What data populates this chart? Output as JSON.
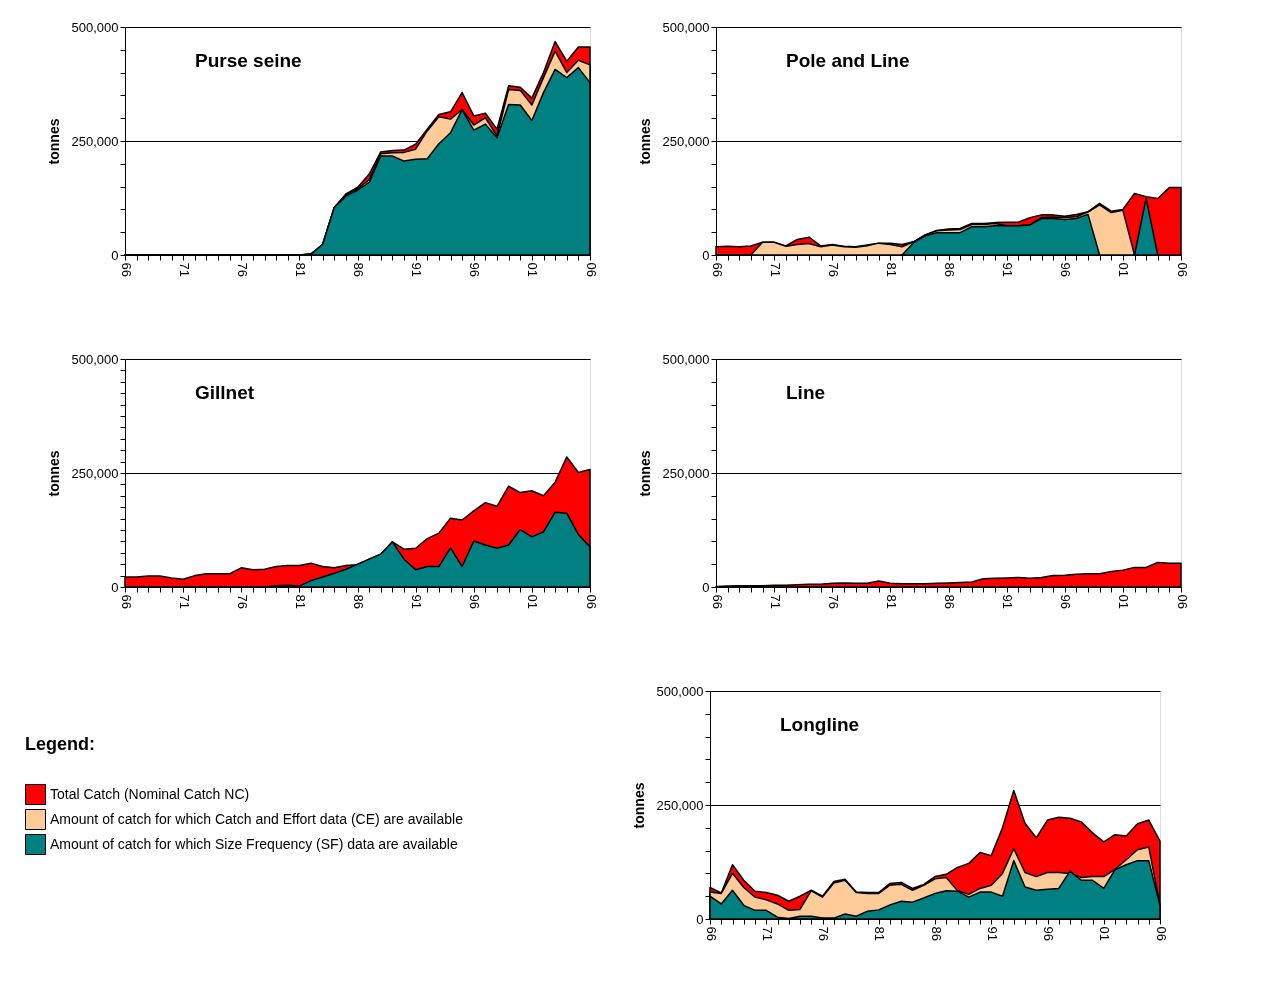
{
  "chart_data": [
    {
      "type": "area",
      "title": "Purse seine",
      "ylabel": "tonnes",
      "grid": "y",
      "legend": "bottom left",
      "legend_title": "Legend:",
      "x": [
        1966,
        1967,
        1968,
        1969,
        1970,
        1971,
        1972,
        1973,
        1974,
        1975,
        1976,
        1977,
        1978,
        1979,
        1980,
        1981,
        1982,
        1983,
        1984,
        1985,
        1986,
        1987,
        1988,
        1989,
        1990,
        1991,
        1992,
        1993,
        1994,
        1995,
        1996,
        1997,
        1998,
        1999,
        2000,
        2001,
        2002,
        2003,
        2004,
        2005,
        2006
      ],
      "xlim": [
        1966,
        2006
      ],
      "xticks": [
        {
          "value": 1966,
          "label": "66"
        },
        {
          "value": 1967,
          "label": null
        },
        {
          "value": 1968,
          "label": null
        },
        {
          "value": 1969,
          "label": null
        },
        {
          "value": 1970,
          "label": null
        },
        {
          "value": 1971,
          "label": "71"
        },
        {
          "value": 1972,
          "label": null
        },
        {
          "value": 1973,
          "label": null
        },
        {
          "value": 1974,
          "label": null
        },
        {
          "value": 1975,
          "label": null
        },
        {
          "value": 1976,
          "label": "76"
        },
        {
          "value": 1977,
          "label": null
        },
        {
          "value": 1978,
          "label": null
        },
        {
          "value": 1979,
          "label": null
        },
        {
          "value": 1980,
          "label": null
        },
        {
          "value": 1981,
          "label": "81"
        },
        {
          "value": 1982,
          "label": null
        },
        {
          "value": 1983,
          "label": null
        },
        {
          "value": 1984,
          "label": null
        },
        {
          "value": 1985,
          "label": null
        },
        {
          "value": 1986,
          "label": "86"
        },
        {
          "value": 1987,
          "label": null
        },
        {
          "value": 1988,
          "label": null
        },
        {
          "value": 1989,
          "label": null
        },
        {
          "value": 1990,
          "label": null
        },
        {
          "value": 1991,
          "label": "91"
        },
        {
          "value": 1992,
          "label": null
        },
        {
          "value": 1993,
          "label": null
        },
        {
          "value": 1994,
          "label": null
        },
        {
          "value": 1995,
          "label": null
        },
        {
          "value": 1996,
          "label": "96"
        },
        {
          "value": 1997,
          "label": null
        },
        {
          "value": 1998,
          "label": null
        },
        {
          "value": 1999,
          "label": null
        },
        {
          "value": 2000,
          "label": null
        },
        {
          "value": 2001,
          "label": "01"
        },
        {
          "value": 2002,
          "label": null
        },
        {
          "value": 2003,
          "label": null
        },
        {
          "value": 2004,
          "label": null
        },
        {
          "value": 2005,
          "label": null
        },
        {
          "value": 2006,
          "label": "06"
        }
      ],
      "ylim": [
        0,
        500000
      ],
      "yticks": [
        0,
        {
          "value": 50000,
          "label": null
        },
        {
          "value": 100000,
          "label": null
        },
        {
          "value": 150000,
          "label": null
        },
        {
          "value": 200000,
          "label": null
        },
        {
          "value": 250000,
          "label": "250,000"
        },
        {
          "value": 300000,
          "label": null
        },
        {
          "value": 350000,
          "label": null
        },
        {
          "value": 400000,
          "label": null
        },
        {
          "value": 450000,
          "label": null
        },
        {
          "value": 500000,
          "label": "500,000"
        }
      ],
      "series": [
        {
          "name": "Total Catch (Nominal Catch NC)",
          "color": "#ff0000",
          "values": [
            0,
            0,
            0,
            0,
            0,
            0,
            0,
            0,
            0,
            0,
            0,
            0,
            0,
            0,
            0,
            0,
            2000,
            23000,
            104000,
            134000,
            148000,
            177000,
            226000,
            229000,
            230000,
            243000,
            276000,
            308000,
            314000,
            356000,
            305000,
            311000,
            276000,
            371000,
            368000,
            344000,
            400000,
            468000,
            425000,
            456000,
            456000
          ]
        },
        {
          "name": "Amount of catch for which Catch and Effort data (CE) are available",
          "color": "#ffcc99",
          "values": [
            0,
            0,
            0,
            0,
            0,
            0,
            0,
            0,
            0,
            0,
            0,
            0,
            0,
            0,
            0,
            0,
            2000,
            23000,
            104000,
            131000,
            145000,
            165000,
            222000,
            224000,
            225000,
            232000,
            272000,
            303000,
            298000,
            319000,
            285000,
            301000,
            261000,
            363000,
            361000,
            329000,
            389000,
            447000,
            400000,
            427000,
            417000
          ]
        },
        {
          "name": "Amount of catch for which Size Frequency (SF) data are available",
          "color": "#008080",
          "values": [
            0,
            0,
            0,
            0,
            0,
            0,
            0,
            0,
            0,
            0,
            0,
            0,
            0,
            0,
            0,
            0,
            2000,
            23000,
            104000,
            129000,
            142000,
            159000,
            217000,
            217000,
            206000,
            210000,
            211000,
            244000,
            268000,
            319000,
            274000,
            287000,
            257000,
            330000,
            329000,
            295000,
            356000,
            407000,
            389000,
            411000,
            378000
          ]
        }
      ]
    },
    {
      "type": "area",
      "title": "Pole and Line",
      "ylabel": "tonnes",
      "grid": "y",
      "x": [
        1966,
        1967,
        1968,
        1969,
        1970,
        1971,
        1972,
        1973,
        1974,
        1975,
        1976,
        1977,
        1978,
        1979,
        1980,
        1981,
        1982,
        1983,
        1984,
        1985,
        1986,
        1987,
        1988,
        1989,
        1990,
        1991,
        1992,
        1993,
        1994,
        1995,
        1996,
        1997,
        1998,
        1999,
        2000,
        2001,
        2002,
        2003,
        2004,
        2005,
        2006
      ],
      "xlim": [
        1966,
        2006
      ],
      "xticks": [
        {
          "value": 1966,
          "label": "66"
        },
        {
          "value": 1967,
          "label": null
        },
        {
          "value": 1968,
          "label": null
        },
        {
          "value": 1969,
          "label": null
        },
        {
          "value": 1970,
          "label": null
        },
        {
          "value": 1971,
          "label": "71"
        },
        {
          "value": 1972,
          "label": null
        },
        {
          "value": 1973,
          "label": null
        },
        {
          "value": 1974,
          "label": null
        },
        {
          "value": 1975,
          "label": null
        },
        {
          "value": 1976,
          "label": "76"
        },
        {
          "value": 1977,
          "label": null
        },
        {
          "value": 1978,
          "label": null
        },
        {
          "value": 1979,
          "label": null
        },
        {
          "value": 1980,
          "label": null
        },
        {
          "value": 1981,
          "label": "81"
        },
        {
          "value": 1982,
          "label": null
        },
        {
          "value": 1983,
          "label": null
        },
        {
          "value": 1984,
          "label": null
        },
        {
          "value": 1985,
          "label": null
        },
        {
          "value": 1986,
          "label": "86"
        },
        {
          "value": 1987,
          "label": null
        },
        {
          "value": 1988,
          "label": null
        },
        {
          "value": 1989,
          "label": null
        },
        {
          "value": 1990,
          "label": null
        },
        {
          "value": 1991,
          "label": "91"
        },
        {
          "value": 1992,
          "label": null
        },
        {
          "value": 1993,
          "label": null
        },
        {
          "value": 1994,
          "label": null
        },
        {
          "value": 1995,
          "label": null
        },
        {
          "value": 1996,
          "label": "96"
        },
        {
          "value": 1997,
          "label": null
        },
        {
          "value": 1998,
          "label": null
        },
        {
          "value": 1999,
          "label": null
        },
        {
          "value": 2000,
          "label": null
        },
        {
          "value": 2001,
          "label": "01"
        },
        {
          "value": 2002,
          "label": null
        },
        {
          "value": 2003,
          "label": null
        },
        {
          "value": 2004,
          "label": null
        },
        {
          "value": 2005,
          "label": null
        },
        {
          "value": 2006,
          "label": "06"
        }
      ],
      "ylim": [
        0,
        500000
      ],
      "yticks": [
        0,
        {
          "value": 50000,
          "label": null
        },
        {
          "value": 100000,
          "label": null
        },
        {
          "value": 150000,
          "label": null
        },
        {
          "value": 200000,
          "label": null
        },
        {
          "value": 250000,
          "label": "250,000"
        },
        {
          "value": 300000,
          "label": null
        },
        {
          "value": 350000,
          "label": null
        },
        {
          "value": 400000,
          "label": null
        },
        {
          "value": 450000,
          "label": null
        },
        {
          "value": 500000,
          "label": "500,000"
        }
      ],
      "series": [
        {
          "color": "#ff0000",
          "values": [
            18000,
            19000,
            18000,
            20000,
            28000,
            28000,
            20000,
            34000,
            39000,
            20000,
            23000,
            19000,
            18000,
            22000,
            26000,
            26000,
            23000,
            29000,
            44000,
            54000,
            57000,
            58000,
            69000,
            69000,
            71000,
            72000,
            72000,
            82000,
            88000,
            88000,
            85000,
            89000,
            95000,
            113000,
            96000,
            100000,
            135000,
            128000,
            124000,
            148000,
            148000
          ]
        },
        {
          "color": "#ffcc99",
          "values": [
            0,
            0,
            0,
            0,
            28000,
            28000,
            19000,
            23000,
            25000,
            18000,
            22000,
            18000,
            17000,
            20000,
            26000,
            23000,
            18000,
            29000,
            44000,
            53000,
            55000,
            56000,
            67000,
            67000,
            69000,
            64000,
            64000,
            66000,
            82000,
            83000,
            82000,
            84000,
            94000,
            110000,
            93000,
            98000,
            0,
            null,
            null,
            null,
            null
          ]
        },
        {
          "color": "#008080",
          "values": [
            null,
            null,
            null,
            null,
            null,
            null,
            null,
            null,
            null,
            null,
            null,
            null,
            null,
            null,
            null,
            null,
            0,
            27000,
            42000,
            49000,
            49000,
            49000,
            62000,
            62000,
            64000,
            64000,
            64000,
            66000,
            80000,
            80000,
            78000,
            80000,
            89000,
            0,
            null,
            null,
            0,
            124000,
            0,
            null,
            null
          ]
        }
      ]
    },
    {
      "type": "area",
      "title": "Gillnet",
      "ylabel": "tonnes",
      "grid": "y",
      "x": [
        1966,
        1967,
        1968,
        1969,
        1970,
        1971,
        1972,
        1973,
        1974,
        1975,
        1976,
        1977,
        1978,
        1979,
        1980,
        1981,
        1982,
        1983,
        1984,
        1985,
        1986,
        1987,
        1988,
        1989,
        1990,
        1991,
        1992,
        1993,
        1994,
        1995,
        1996,
        1997,
        1998,
        1999,
        2000,
        2001,
        2002,
        2003,
        2004,
        2005,
        2006
      ],
      "xlim": [
        1966,
        2006
      ],
      "xticks": [
        {
          "value": 1966,
          "label": "66"
        },
        {
          "value": 1967,
          "label": null
        },
        {
          "value": 1968,
          "label": null
        },
        {
          "value": 1969,
          "label": null
        },
        {
          "value": 1970,
          "label": null
        },
        {
          "value": 1971,
          "label": "71"
        },
        {
          "value": 1972,
          "label": null
        },
        {
          "value": 1973,
          "label": null
        },
        {
          "value": 1974,
          "label": null
        },
        {
          "value": 1975,
          "label": null
        },
        {
          "value": 1976,
          "label": "76"
        },
        {
          "value": 1977,
          "label": null
        },
        {
          "value": 1978,
          "label": null
        },
        {
          "value": 1979,
          "label": null
        },
        {
          "value": 1980,
          "label": null
        },
        {
          "value": 1981,
          "label": "81"
        },
        {
          "value": 1982,
          "label": null
        },
        {
          "value": 1983,
          "label": null
        },
        {
          "value": 1984,
          "label": null
        },
        {
          "value": 1985,
          "label": null
        },
        {
          "value": 1986,
          "label": "86"
        },
        {
          "value": 1987,
          "label": null
        },
        {
          "value": 1988,
          "label": null
        },
        {
          "value": 1989,
          "label": null
        },
        {
          "value": 1990,
          "label": null
        },
        {
          "value": 1991,
          "label": "91"
        },
        {
          "value": 1992,
          "label": null
        },
        {
          "value": 1993,
          "label": null
        },
        {
          "value": 1994,
          "label": null
        },
        {
          "value": 1995,
          "label": null
        },
        {
          "value": 1996,
          "label": "96"
        },
        {
          "value": 1997,
          "label": null
        },
        {
          "value": 1998,
          "label": null
        },
        {
          "value": 1999,
          "label": null
        },
        {
          "value": 2000,
          "label": null
        },
        {
          "value": 2001,
          "label": "01"
        },
        {
          "value": 2002,
          "label": null
        },
        {
          "value": 2003,
          "label": null
        },
        {
          "value": 2004,
          "label": null
        },
        {
          "value": 2005,
          "label": null
        },
        {
          "value": 2006,
          "label": "06"
        }
      ],
      "ylim": [
        0,
        500000
      ],
      "yticks": [
        0,
        {
          "value": 25000,
          "label": null
        },
        {
          "value": 50000,
          "label": null
        },
        {
          "value": 75000,
          "label": null
        },
        {
          "value": 100000,
          "label": null
        },
        {
          "value": 125000,
          "label": null
        },
        {
          "value": 150000,
          "label": null
        },
        {
          "value": 175000,
          "label": null
        },
        {
          "value": 200000,
          "label": null
        },
        {
          "value": 225000,
          "label": null
        },
        {
          "value": 250000,
          "label": "250,000"
        },
        {
          "value": 275000,
          "label": null
        },
        {
          "value": 300000,
          "label": null
        },
        {
          "value": 325000,
          "label": null
        },
        {
          "value": 350000,
          "label": null
        },
        {
          "value": 375000,
          "label": null
        },
        {
          "value": 400000,
          "label": null
        },
        {
          "value": 425000,
          "label": null
        },
        {
          "value": 450000,
          "label": null
        },
        {
          "value": 475000,
          "label": null
        },
        {
          "value": 500000,
          "label": "500,000"
        }
      ],
      "series": [
        {
          "color": "#ff0000",
          "values": [
            22000,
            22000,
            24000,
            24000,
            20000,
            17000,
            25000,
            29000,
            29000,
            29000,
            42000,
            38000,
            39000,
            45000,
            47000,
            47000,
            52000,
            45000,
            42000,
            47000,
            49000,
            61000,
            72000,
            99000,
            83000,
            85000,
            106000,
            118000,
            151000,
            147000,
            167000,
            185000,
            177000,
            221000,
            207000,
            211000,
            200000,
            230000,
            285000,
            251000,
            258000
          ]
        },
        {
          "color": "#008080",
          "values": [
            0,
            0,
            0,
            0,
            0,
            0,
            0,
            0,
            0,
            0,
            0,
            0,
            0,
            3000,
            4000,
            2000,
            14000,
            22000,
            30000,
            39000,
            50000,
            61000,
            72000,
            99000,
            61000,
            38000,
            45000,
            45000,
            86000,
            45000,
            101000,
            92000,
            85000,
            92000,
            126000,
            110000,
            121000,
            164000,
            162000,
            115000,
            88000
          ]
        }
      ]
    },
    {
      "type": "area",
      "title": "Line",
      "ylabel": "tonnes",
      "grid": "y",
      "x": [
        1966,
        1967,
        1968,
        1969,
        1970,
        1971,
        1972,
        1973,
        1974,
        1975,
        1976,
        1977,
        1978,
        1979,
        1980,
        1981,
        1982,
        1983,
        1984,
        1985,
        1986,
        1987,
        1988,
        1989,
        1990,
        1991,
        1992,
        1993,
        1994,
        1995,
        1996,
        1997,
        1998,
        1999,
        2000,
        2001,
        2002,
        2003,
        2004,
        2005,
        2006
      ],
      "xlim": [
        1966,
        2006
      ],
      "xticks": [
        {
          "value": 1966,
          "label": "66"
        },
        {
          "value": 1967,
          "label": null
        },
        {
          "value": 1968,
          "label": null
        },
        {
          "value": 1969,
          "label": null
        },
        {
          "value": 1970,
          "label": null
        },
        {
          "value": 1971,
          "label": "71"
        },
        {
          "value": 1972,
          "label": null
        },
        {
          "value": 1973,
          "label": null
        },
        {
          "value": 1974,
          "label": null
        },
        {
          "value": 1975,
          "label": null
        },
        {
          "value": 1976,
          "label": "76"
        },
        {
          "value": 1977,
          "label": null
        },
        {
          "value": 1978,
          "label": null
        },
        {
          "value": 1979,
          "label": null
        },
        {
          "value": 1980,
          "label": null
        },
        {
          "value": 1981,
          "label": "81"
        },
        {
          "value": 1982,
          "label": null
        },
        {
          "value": 1983,
          "label": null
        },
        {
          "value": 1984,
          "label": null
        },
        {
          "value": 1985,
          "label": null
        },
        {
          "value": 1986,
          "label": "86"
        },
        {
          "value": 1987,
          "label": null
        },
        {
          "value": 1988,
          "label": null
        },
        {
          "value": 1989,
          "label": null
        },
        {
          "value": 1990,
          "label": null
        },
        {
          "value": 1991,
          "label": "91"
        },
        {
          "value": 1992,
          "label": null
        },
        {
          "value": 1993,
          "label": null
        },
        {
          "value": 1994,
          "label": null
        },
        {
          "value": 1995,
          "label": null
        },
        {
          "value": 1996,
          "label": "96"
        },
        {
          "value": 1997,
          "label": null
        },
        {
          "value": 1998,
          "label": null
        },
        {
          "value": 1999,
          "label": null
        },
        {
          "value": 2000,
          "label": null
        },
        {
          "value": 2001,
          "label": "01"
        },
        {
          "value": 2002,
          "label": null
        },
        {
          "value": 2003,
          "label": null
        },
        {
          "value": 2004,
          "label": null
        },
        {
          "value": 2005,
          "label": null
        },
        {
          "value": 2006,
          "label": "06"
        }
      ],
      "ylim": [
        0,
        500000
      ],
      "yticks": [
        0,
        {
          "value": 50000,
          "label": null
        },
        {
          "value": 100000,
          "label": null
        },
        {
          "value": 150000,
          "label": null
        },
        {
          "value": 200000,
          "label": null
        },
        {
          "value": 250000,
          "label": "250,000"
        },
        {
          "value": 300000,
          "label": null
        },
        {
          "value": 350000,
          "label": null
        },
        {
          "value": 400000,
          "label": null
        },
        {
          "value": 450000,
          "label": null
        },
        {
          "value": 500000,
          "label": "500,000"
        }
      ],
      "series": [
        {
          "color": "#ff0000",
          "values": [
            1000,
            2000,
            3000,
            3000,
            3000,
            4000,
            4000,
            5000,
            6000,
            6000,
            8000,
            9000,
            8000,
            8000,
            13000,
            8000,
            7000,
            7000,
            7000,
            8000,
            9000,
            10000,
            11000,
            18000,
            19000,
            20000,
            21000,
            19000,
            21000,
            25000,
            26000,
            28000,
            29000,
            29000,
            34000,
            37000,
            43000,
            43000,
            54000,
            52000,
            52000
          ]
        }
      ]
    },
    {
      "type": "area",
      "title": "Longline",
      "ylabel": "tonnes",
      "grid": "y",
      "x": [
        1966,
        1967,
        1968,
        1969,
        1970,
        1971,
        1972,
        1973,
        1974,
        1975,
        1976,
        1977,
        1978,
        1979,
        1980,
        1981,
        1982,
        1983,
        1984,
        1985,
        1986,
        1987,
        1988,
        1989,
        1990,
        1991,
        1992,
        1993,
        1994,
        1995,
        1996,
        1997,
        1998,
        1999,
        2000,
        2001,
        2002,
        2003,
        2004,
        2005,
        2006
      ],
      "xlim": [
        1966,
        2006
      ],
      "xticks": [
        {
          "value": 1966,
          "label": "66"
        },
        {
          "value": 1967,
          "label": null
        },
        {
          "value": 1968,
          "label": null
        },
        {
          "value": 1969,
          "label": null
        },
        {
          "value": 1970,
          "label": null
        },
        {
          "value": 1971,
          "label": "71"
        },
        {
          "value": 1972,
          "label": null
        },
        {
          "value": 1973,
          "label": null
        },
        {
          "value": 1974,
          "label": null
        },
        {
          "value": 1975,
          "label": null
        },
        {
          "value": 1976,
          "label": "76"
        },
        {
          "value": 1977,
          "label": null
        },
        {
          "value": 1978,
          "label": null
        },
        {
          "value": 1979,
          "label": null
        },
        {
          "value": 1980,
          "label": null
        },
        {
          "value": 1981,
          "label": "81"
        },
        {
          "value": 1982,
          "label": null
        },
        {
          "value": 1983,
          "label": null
        },
        {
          "value": 1984,
          "label": null
        },
        {
          "value": 1985,
          "label": null
        },
        {
          "value": 1986,
          "label": "86"
        },
        {
          "value": 1987,
          "label": null
        },
        {
          "value": 1988,
          "label": null
        },
        {
          "value": 1989,
          "label": null
        },
        {
          "value": 1990,
          "label": null
        },
        {
          "value": 1991,
          "label": "91"
        },
        {
          "value": 1992,
          "label": null
        },
        {
          "value": 1993,
          "label": null
        },
        {
          "value": 1994,
          "label": null
        },
        {
          "value": 1995,
          "label": null
        },
        {
          "value": 1996,
          "label": "96"
        },
        {
          "value": 1997,
          "label": null
        },
        {
          "value": 1998,
          "label": null
        },
        {
          "value": 1999,
          "label": null
        },
        {
          "value": 2000,
          "label": null
        },
        {
          "value": 2001,
          "label": "01"
        },
        {
          "value": 2002,
          "label": null
        },
        {
          "value": 2003,
          "label": null
        },
        {
          "value": 2004,
          "label": null
        },
        {
          "value": 2005,
          "label": null
        },
        {
          "value": 2006,
          "label": "06"
        }
      ],
      "ylim": [
        0,
        500000
      ],
      "yticks": [
        0,
        {
          "value": 50000,
          "label": null
        },
        {
          "value": 100000,
          "label": null
        },
        {
          "value": 150000,
          "label": null
        },
        {
          "value": 200000,
          "label": null
        },
        {
          "value": 250000,
          "label": "250,000"
        },
        {
          "value": 300000,
          "label": null
        },
        {
          "value": 350000,
          "label": null
        },
        {
          "value": 400000,
          "label": null
        },
        {
          "value": 450000,
          "label": null
        },
        {
          "value": 500000,
          "label": "500,000"
        }
      ],
      "series": [
        {
          "color": "#ff0000",
          "values": [
            69000,
            57000,
            119000,
            85000,
            61000,
            58000,
            52000,
            39000,
            50000,
            63000,
            50000,
            82000,
            87000,
            59000,
            58000,
            58000,
            78000,
            80000,
            67000,
            76000,
            93000,
            98000,
            113000,
            122000,
            146000,
            139000,
            200000,
            282000,
            210000,
            178000,
            217000,
            223000,
            221000,
            213000,
            189000,
            169000,
            185000,
            182000,
            209000,
            217000,
            171000
          ]
        },
        {
          "color": "#ffcc99",
          "values": [
            59000,
            56000,
            100000,
            69000,
            48000,
            42000,
            33000,
            19000,
            21000,
            62000,
            48000,
            79000,
            85000,
            58000,
            56000,
            56000,
            74000,
            76000,
            63000,
            74000,
            88000,
            91000,
            62000,
            54000,
            67000,
            74000,
            100000,
            154000,
            102000,
            93000,
            102000,
            102000,
            100000,
            91000,
            93000,
            93000,
            109000,
            130000,
            152000,
            158000,
            30000
          ]
        },
        {
          "color": "#008080",
          "values": [
            50000,
            33000,
            63000,
            30000,
            19000,
            19000,
            4000,
            1000,
            6000,
            6000,
            2000,
            2000,
            11000,
            6000,
            17000,
            20000,
            31000,
            39000,
            37000,
            46000,
            56000,
            62000,
            61000,
            48000,
            59000,
            59000,
            50000,
            128000,
            70000,
            63000,
            65000,
            67000,
            105000,
            85000,
            85000,
            67000,
            108000,
            119000,
            128000,
            128000,
            30000
          ]
        }
      ]
    }
  ]
}
